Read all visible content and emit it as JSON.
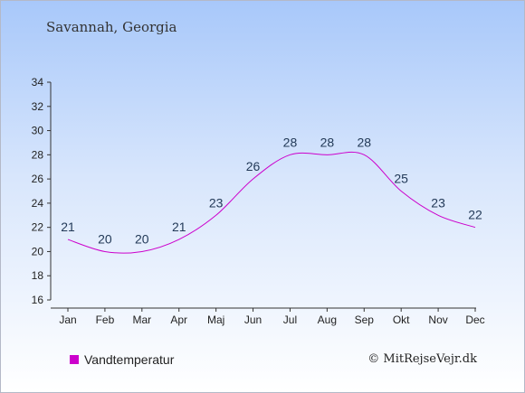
{
  "title": "Savannah, Georgia",
  "credit": "© MitRejseVejr.dk",
  "chart_data": {
    "type": "line",
    "title": "Savannah, Georgia",
    "xlabel": "",
    "ylabel": "",
    "categories": [
      "Jan",
      "Feb",
      "Mar",
      "Apr",
      "Maj",
      "Jun",
      "Jul",
      "Aug",
      "Sep",
      "Okt",
      "Nov",
      "Dec"
    ],
    "series": [
      {
        "name": "Vandtemperatur",
        "values": [
          21,
          20,
          20,
          21,
          23,
          26,
          28,
          28,
          28,
          25,
          23,
          22
        ],
        "color": "#cc00cc"
      }
    ],
    "yticks": [
      16,
      18,
      20,
      22,
      24,
      26,
      28,
      30,
      32,
      34
    ],
    "ylim": [
      16,
      34
    ],
    "grid": false,
    "legend": "bottom-left"
  }
}
